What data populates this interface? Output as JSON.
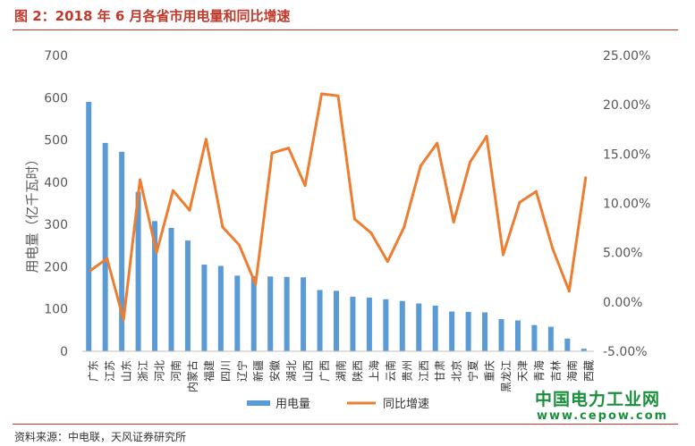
{
  "title": "图 2：2018 年 6 月各省市用电量和同比增速",
  "source": "资料来源：中电联，天风证券研究所",
  "watermark": {
    "line1": "中国电力工业网",
    "line2": "www.cepow.com"
  },
  "colors": {
    "bar": "#5b9bd5",
    "line": "#ed7d31",
    "title": "#c0392b",
    "watermark": "#1a8f3c"
  },
  "chart_data": {
    "type": "bar",
    "title": "",
    "ylabel": "用电量（亿千瓦时）",
    "ylim": [
      0,
      700
    ],
    "yticks": [
      "0",
      "100",
      "200",
      "300",
      "400",
      "500",
      "600",
      "700"
    ],
    "y2lim": [
      -5,
      25
    ],
    "y2ticks": [
      "-5.00%",
      "0.00%",
      "5.00%",
      "10.00%",
      "15.00%",
      "20.00%",
      "25.00%"
    ],
    "legend_position": "bottom",
    "categories": [
      "广东",
      "江苏",
      "山东",
      "浙江",
      "河北",
      "河南",
      "内蒙古",
      "福建",
      "四川",
      "辽宁",
      "新疆",
      "安徽",
      "湖北",
      "山西",
      "广西",
      "湖南",
      "陕西",
      "上海",
      "云南",
      "贵州",
      "江西",
      "甘肃",
      "北京",
      "宁夏",
      "重庆",
      "黑龙江",
      "天津",
      "青海",
      "吉林",
      "海南",
      "西藏"
    ],
    "series": [
      {
        "name": "用电量",
        "type": "bar",
        "axis": "left",
        "values": [
          590,
          493,
          472,
          377,
          308,
          292,
          262,
          205,
          202,
          179,
          178,
          177,
          176,
          175,
          145,
          143,
          129,
          127,
          123,
          119,
          113,
          108,
          94,
          93,
          92,
          76,
          73,
          62,
          58,
          30,
          6
        ]
      },
      {
        "name": "同比增速",
        "type": "line",
        "axis": "right",
        "values": [
          3.2,
          4.4,
          -1.8,
          12.4,
          5.0,
          11.3,
          9.3,
          16.5,
          7.6,
          5.8,
          1.8,
          15.1,
          15.6,
          11.8,
          21.1,
          20.9,
          8.4,
          7.0,
          4.1,
          7.6,
          13.8,
          16.1,
          8.1,
          14.2,
          16.8,
          4.8,
          10.1,
          11.2,
          5.4,
          1.1,
          12.6
        ]
      }
    ]
  }
}
